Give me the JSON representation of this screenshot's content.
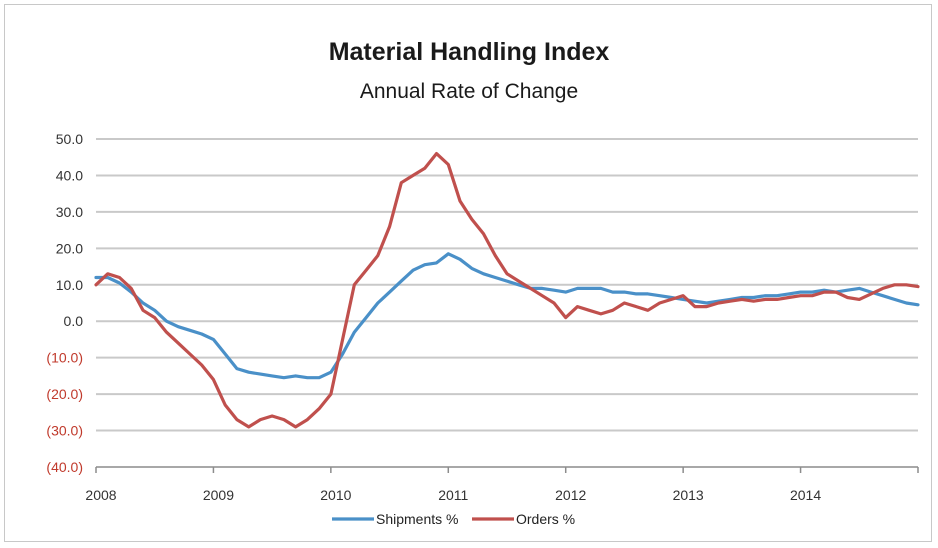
{
  "chart_data": {
    "type": "line",
    "title": "Material Handling Index",
    "subtitle": "Annual Rate of Change",
    "xlabel": "",
    "ylabel": "",
    "x_tick_labels": [
      "2008",
      "2009",
      "2010",
      "2011",
      "2012",
      "2013",
      "2014"
    ],
    "y_tick_labels": [
      "50.0",
      "40.0",
      "30.0",
      "20.0",
      "10.0",
      "0.0",
      "(10.0)",
      "(20.0)",
      "(30.0)",
      "(40.0)"
    ],
    "y_ticks": [
      50,
      40,
      30,
      20,
      10,
      0,
      -10,
      -20,
      -30,
      -40
    ],
    "ylim": [
      -40,
      50
    ],
    "xlim": [
      2008,
      2015
    ],
    "grid": "horizontal",
    "legend_position": "bottom",
    "negative_label_color": "#c0392b",
    "series": [
      {
        "name": "Shipments %",
        "color": "#4a90c8",
        "x": [
          2008.0,
          2008.1,
          2008.2,
          2008.3,
          2008.4,
          2008.5,
          2008.6,
          2008.7,
          2008.8,
          2008.9,
          2009.0,
          2009.1,
          2009.2,
          2009.3,
          2009.4,
          2009.5,
          2009.6,
          2009.7,
          2009.8,
          2009.9,
          2010.0,
          2010.1,
          2010.2,
          2010.3,
          2010.4,
          2010.5,
          2010.6,
          2010.7,
          2010.8,
          2010.9,
          2011.0,
          2011.1,
          2011.2,
          2011.3,
          2011.4,
          2011.5,
          2011.6,
          2011.7,
          2011.8,
          2011.9,
          2012.0,
          2012.1,
          2012.2,
          2012.3,
          2012.4,
          2012.5,
          2012.6,
          2012.7,
          2012.8,
          2012.9,
          2013.0,
          2013.1,
          2013.2,
          2013.3,
          2013.4,
          2013.5,
          2013.6,
          2013.7,
          2013.8,
          2013.9,
          2014.0,
          2014.1,
          2014.2,
          2014.3,
          2014.4,
          2014.5,
          2014.6,
          2014.7,
          2014.8,
          2014.9,
          2015.0
        ],
        "values": [
          12,
          12,
          10.5,
          8,
          5,
          3,
          0,
          -1.5,
          -2.5,
          -3.5,
          -5,
          -9,
          -13,
          -14,
          -14.5,
          -15,
          -15.5,
          -15,
          -15.5,
          -15.5,
          -14,
          -9,
          -3,
          1,
          5,
          8,
          11,
          14,
          15.5,
          16,
          18.5,
          17,
          14.5,
          13,
          12,
          11,
          10,
          9,
          9,
          8.5,
          8,
          9,
          9,
          9,
          8,
          8,
          7.5,
          7.5,
          7,
          6.5,
          6,
          5.5,
          5,
          5.5,
          6,
          6.5,
          6.5,
          7,
          7,
          7.5,
          8,
          8,
          8.5,
          8,
          8.5,
          9,
          8,
          7,
          6,
          5,
          4.5
        ]
      },
      {
        "name": "Orders %",
        "color": "#c0504d",
        "x": [
          2008.0,
          2008.1,
          2008.2,
          2008.3,
          2008.4,
          2008.5,
          2008.6,
          2008.7,
          2008.8,
          2008.9,
          2009.0,
          2009.1,
          2009.2,
          2009.3,
          2009.4,
          2009.5,
          2009.6,
          2009.7,
          2009.8,
          2009.9,
          2010.0,
          2010.1,
          2010.2,
          2010.3,
          2010.4,
          2010.5,
          2010.6,
          2010.7,
          2010.8,
          2010.9,
          2011.0,
          2011.1,
          2011.2,
          2011.3,
          2011.4,
          2011.5,
          2011.6,
          2011.7,
          2011.8,
          2011.9,
          2012.0,
          2012.1,
          2012.2,
          2012.3,
          2012.4,
          2012.5,
          2012.6,
          2012.7,
          2012.8,
          2012.9,
          2013.0,
          2013.1,
          2013.2,
          2013.3,
          2013.4,
          2013.5,
          2013.6,
          2013.7,
          2013.8,
          2013.9,
          2014.0,
          2014.1,
          2014.2,
          2014.3,
          2014.4,
          2014.5,
          2014.6,
          2014.7,
          2014.8,
          2014.9,
          2015.0
        ],
        "values": [
          10,
          13,
          12,
          9,
          3,
          1,
          -3,
          -6,
          -9,
          -12,
          -16,
          -23,
          -27,
          -29,
          -27,
          -26,
          -27,
          -29,
          -27,
          -24,
          -20,
          -5,
          10,
          14,
          18,
          26,
          38,
          40,
          42,
          46,
          43,
          33,
          28,
          24,
          18,
          13,
          11,
          9,
          7,
          5,
          1,
          4,
          3,
          2,
          3,
          5,
          4,
          3,
          5,
          6,
          7,
          4,
          4,
          5,
          5.5,
          6,
          5.5,
          6,
          6,
          6.5,
          7,
          7,
          8,
          8,
          6.5,
          6,
          7.5,
          9,
          10,
          10,
          9.5
        ]
      }
    ]
  }
}
